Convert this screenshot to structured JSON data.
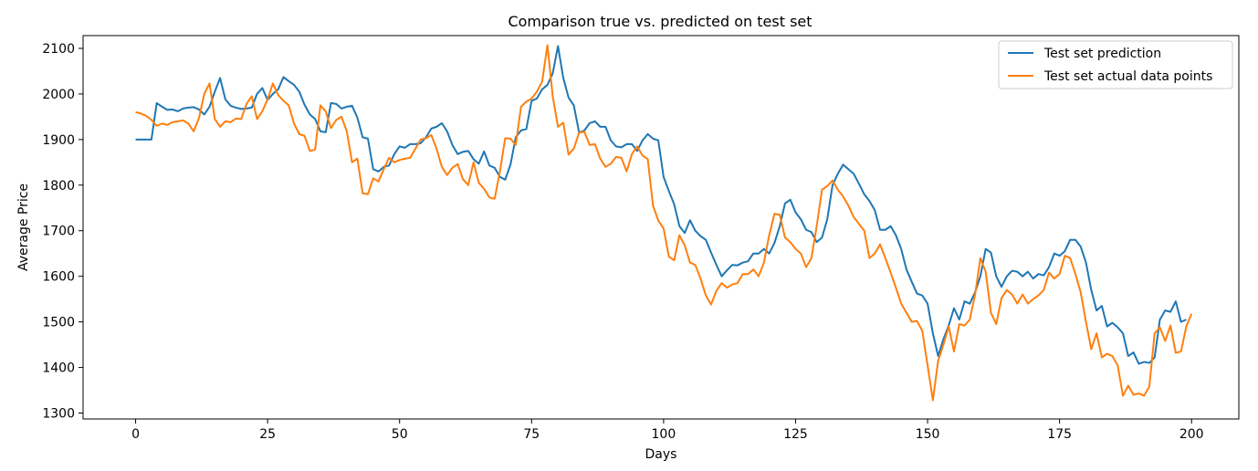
{
  "chart_data": {
    "type": "line",
    "title": "Comparison true vs. predicted on test set",
    "xlabel": "Days",
    "ylabel": "Average Price",
    "xlim": [
      -9.95,
      208.95
    ],
    "ylim": [
      1287,
      2128
    ],
    "xticks": [
      0,
      25,
      50,
      75,
      100,
      125,
      150,
      175,
      200
    ],
    "yticks": [
      1300,
      1400,
      1500,
      1600,
      1700,
      1800,
      1900,
      2000,
      2100
    ],
    "grid": false,
    "legend_position": "top-right",
    "series": [
      {
        "name": "Test set prediction",
        "color": "#1f77b4",
        "values": [
          1900,
          1900,
          1900,
          1900,
          1980,
          1972,
          1965,
          1966,
          1962,
          1968,
          1970,
          1971,
          1966,
          1955,
          1972,
          2005,
          2035,
          1988,
          1974,
          1970,
          1967,
          1968,
          1970,
          2000,
          2013,
          1987,
          2000,
          2010,
          2037,
          2028,
          2020,
          2005,
          1976,
          1955,
          1945,
          1918,
          1916,
          1980,
          1978,
          1968,
          1972,
          1974,
          1948,
          1905,
          1902,
          1835,
          1830,
          1840,
          1843,
          1868,
          1885,
          1882,
          1890,
          1890,
          1892,
          1905,
          1924,
          1928,
          1936,
          1918,
          1888,
          1868,
          1873,
          1875,
          1857,
          1847,
          1874,
          1843,
          1838,
          1818,
          1812,
          1845,
          1905,
          1920,
          1923,
          1985,
          1990,
          2010,
          2020,
          2045,
          2105,
          2035,
          1992,
          1975,
          1915,
          1920,
          1936,
          1940,
          1928,
          1928,
          1898,
          1885,
          1883,
          1890,
          1890,
          1875,
          1898,
          1912,
          1902,
          1898,
          1818,
          1787,
          1758,
          1710,
          1695,
          1723,
          1700,
          1688,
          1680,
          1652,
          1625,
          1600,
          1613,
          1625,
          1624,
          1630,
          1633,
          1650,
          1650,
          1660,
          1650,
          1673,
          1710,
          1760,
          1768,
          1740,
          1725,
          1702,
          1697,
          1675,
          1685,
          1725,
          1800,
          1825,
          1845,
          1835,
          1825,
          1803,
          1780,
          1765,
          1745,
          1702,
          1702,
          1710,
          1690,
          1660,
          1615,
          1588,
          1562,
          1558,
          1540,
          1475,
          1425,
          1462,
          1492,
          1530,
          1505,
          1545,
          1540,
          1565,
          1600,
          1660,
          1652,
          1600,
          1577,
          1600,
          1612,
          1610,
          1600,
          1610,
          1595,
          1605,
          1602,
          1620,
          1650,
          1645,
          1655,
          1680,
          1680,
          1665,
          1630,
          1570,
          1525,
          1535,
          1490,
          1498,
          1488,
          1475,
          1425,
          1433,
          1408,
          1412,
          1410,
          1422,
          1505,
          1525,
          1522,
          1545,
          1500,
          1505
        ]
      },
      {
        "name": "Test set actual data points",
        "color": "#ff7f0e",
        "values": [
          1960,
          1957,
          1952,
          1943,
          1930,
          1935,
          1932,
          1938,
          1940,
          1942,
          1935,
          1918,
          1947,
          2000,
          2023,
          1945,
          1928,
          1940,
          1938,
          1946,
          1945,
          1978,
          1995,
          1945,
          1962,
          1988,
          2023,
          1998,
          1985,
          1975,
          1935,
          1912,
          1908,
          1875,
          1878,
          1975,
          1962,
          1925,
          1943,
          1950,
          1918,
          1850,
          1858,
          1782,
          1780,
          1815,
          1808,
          1835,
          1860,
          1850,
          1855,
          1858,
          1860,
          1880,
          1900,
          1903,
          1910,
          1880,
          1840,
          1822,
          1838,
          1846,
          1813,
          1800,
          1850,
          1805,
          1792,
          1773,
          1770,
          1830,
          1903,
          1902,
          1888,
          1972,
          1983,
          1990,
          2005,
          2027,
          2107,
          1995,
          1928,
          1937,
          1867,
          1880,
          1915,
          1917,
          1888,
          1890,
          1858,
          1840,
          1847,
          1862,
          1860,
          1830,
          1868,
          1885,
          1865,
          1857,
          1755,
          1722,
          1705,
          1643,
          1635,
          1690,
          1668,
          1630,
          1625,
          1595,
          1558,
          1538,
          1568,
          1585,
          1575,
          1582,
          1585,
          1605,
          1605,
          1615,
          1600,
          1630,
          1690,
          1737,
          1735,
          1685,
          1675,
          1660,
          1650,
          1620,
          1640,
          1710,
          1790,
          1798,
          1810,
          1790,
          1775,
          1755,
          1730,
          1715,
          1700,
          1640,
          1650,
          1670,
          1640,
          1608,
          1575,
          1540,
          1520,
          1500,
          1502,
          1480,
          1405,
          1328,
          1415,
          1450,
          1490,
          1435,
          1495,
          1492,
          1505,
          1560,
          1640,
          1610,
          1520,
          1495,
          1552,
          1570,
          1560,
          1540,
          1560,
          1540,
          1550,
          1558,
          1570,
          1608,
          1595,
          1605,
          1645,
          1640,
          1605,
          1565,
          1500,
          1440,
          1475,
          1422,
          1430,
          1425,
          1405,
          1338,
          1360,
          1340,
          1343,
          1338,
          1358,
          1475,
          1488,
          1458,
          1492,
          1432,
          1435,
          1490,
          1518
        ]
      }
    ]
  }
}
